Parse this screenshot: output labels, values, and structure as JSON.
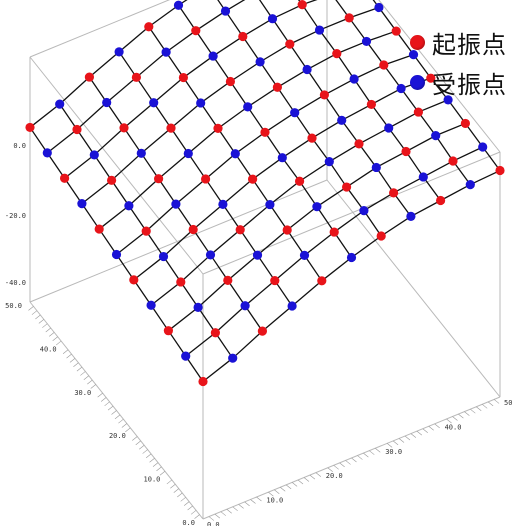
{
  "chart_data": {
    "type": "surface-3d",
    "title": "",
    "grid_size": 11,
    "x_axis": {
      "label": "",
      "range": [
        0,
        50
      ],
      "ticks": [
        "0.0",
        "10.0",
        "20.0",
        "30.0",
        "40.0",
        "50.0"
      ]
    },
    "y_axis": {
      "label": "",
      "range": [
        0,
        50
      ],
      "ticks": [
        "0.0",
        "10.0",
        "20.0",
        "30.0",
        "40.0",
        "50.0"
      ]
    },
    "z_axis": {
      "label": "",
      "range": [
        -48,
        10
      ],
      "ticks": [
        "0.0",
        "-20.0",
        "-40.0"
      ]
    },
    "surface_rows_z": [
      [
        -48,
        -42,
        -34,
        -27,
        -20,
        -14,
        -9,
        -5,
        -3,
        -1,
        0
      ],
      [
        -46,
        -40,
        -32,
        -25,
        -18,
        -12,
        -7,
        -4,
        -2,
        0,
        1
      ],
      [
        -44,
        -38,
        -30,
        -23,
        -16,
        -10,
        -6,
        -2,
        0,
        2,
        2
      ],
      [
        -42,
        -36,
        -28,
        -21,
        -14,
        -8,
        -4,
        -1,
        1,
        3,
        3
      ],
      [
        -40,
        -34,
        -26,
        -19,
        -12,
        -7,
        -3,
        0,
        2,
        4,
        3
      ],
      [
        -38,
        -32,
        -24,
        -17,
        -10,
        -5,
        -1,
        2,
        4,
        5,
        4
      ],
      [
        -36,
        -30,
        -22,
        -15,
        -8,
        -3,
        1,
        4,
        6,
        6,
        5
      ],
      [
        -34,
        -28,
        -20,
        -13,
        -6,
        -1,
        3,
        6,
        7,
        7,
        6
      ],
      [
        -32,
        -26,
        -18,
        -11,
        -4,
        1,
        5,
        8,
        9,
        8,
        7
      ],
      [
        -30,
        -24,
        -16,
        -9,
        -2,
        3,
        7,
        10,
        10,
        9,
        8
      ],
      [
        -28,
        -22,
        -14,
        -7,
        0,
        5,
        9,
        11,
        11,
        10,
        9
      ]
    ],
    "point_pattern": "alternating",
    "legend": [
      {
        "name": "起振点",
        "color": "#e8141a"
      },
      {
        "name": "受振点",
        "color": "#1a12d6"
      }
    ],
    "legend_position": "top-right",
    "grid": false
  }
}
